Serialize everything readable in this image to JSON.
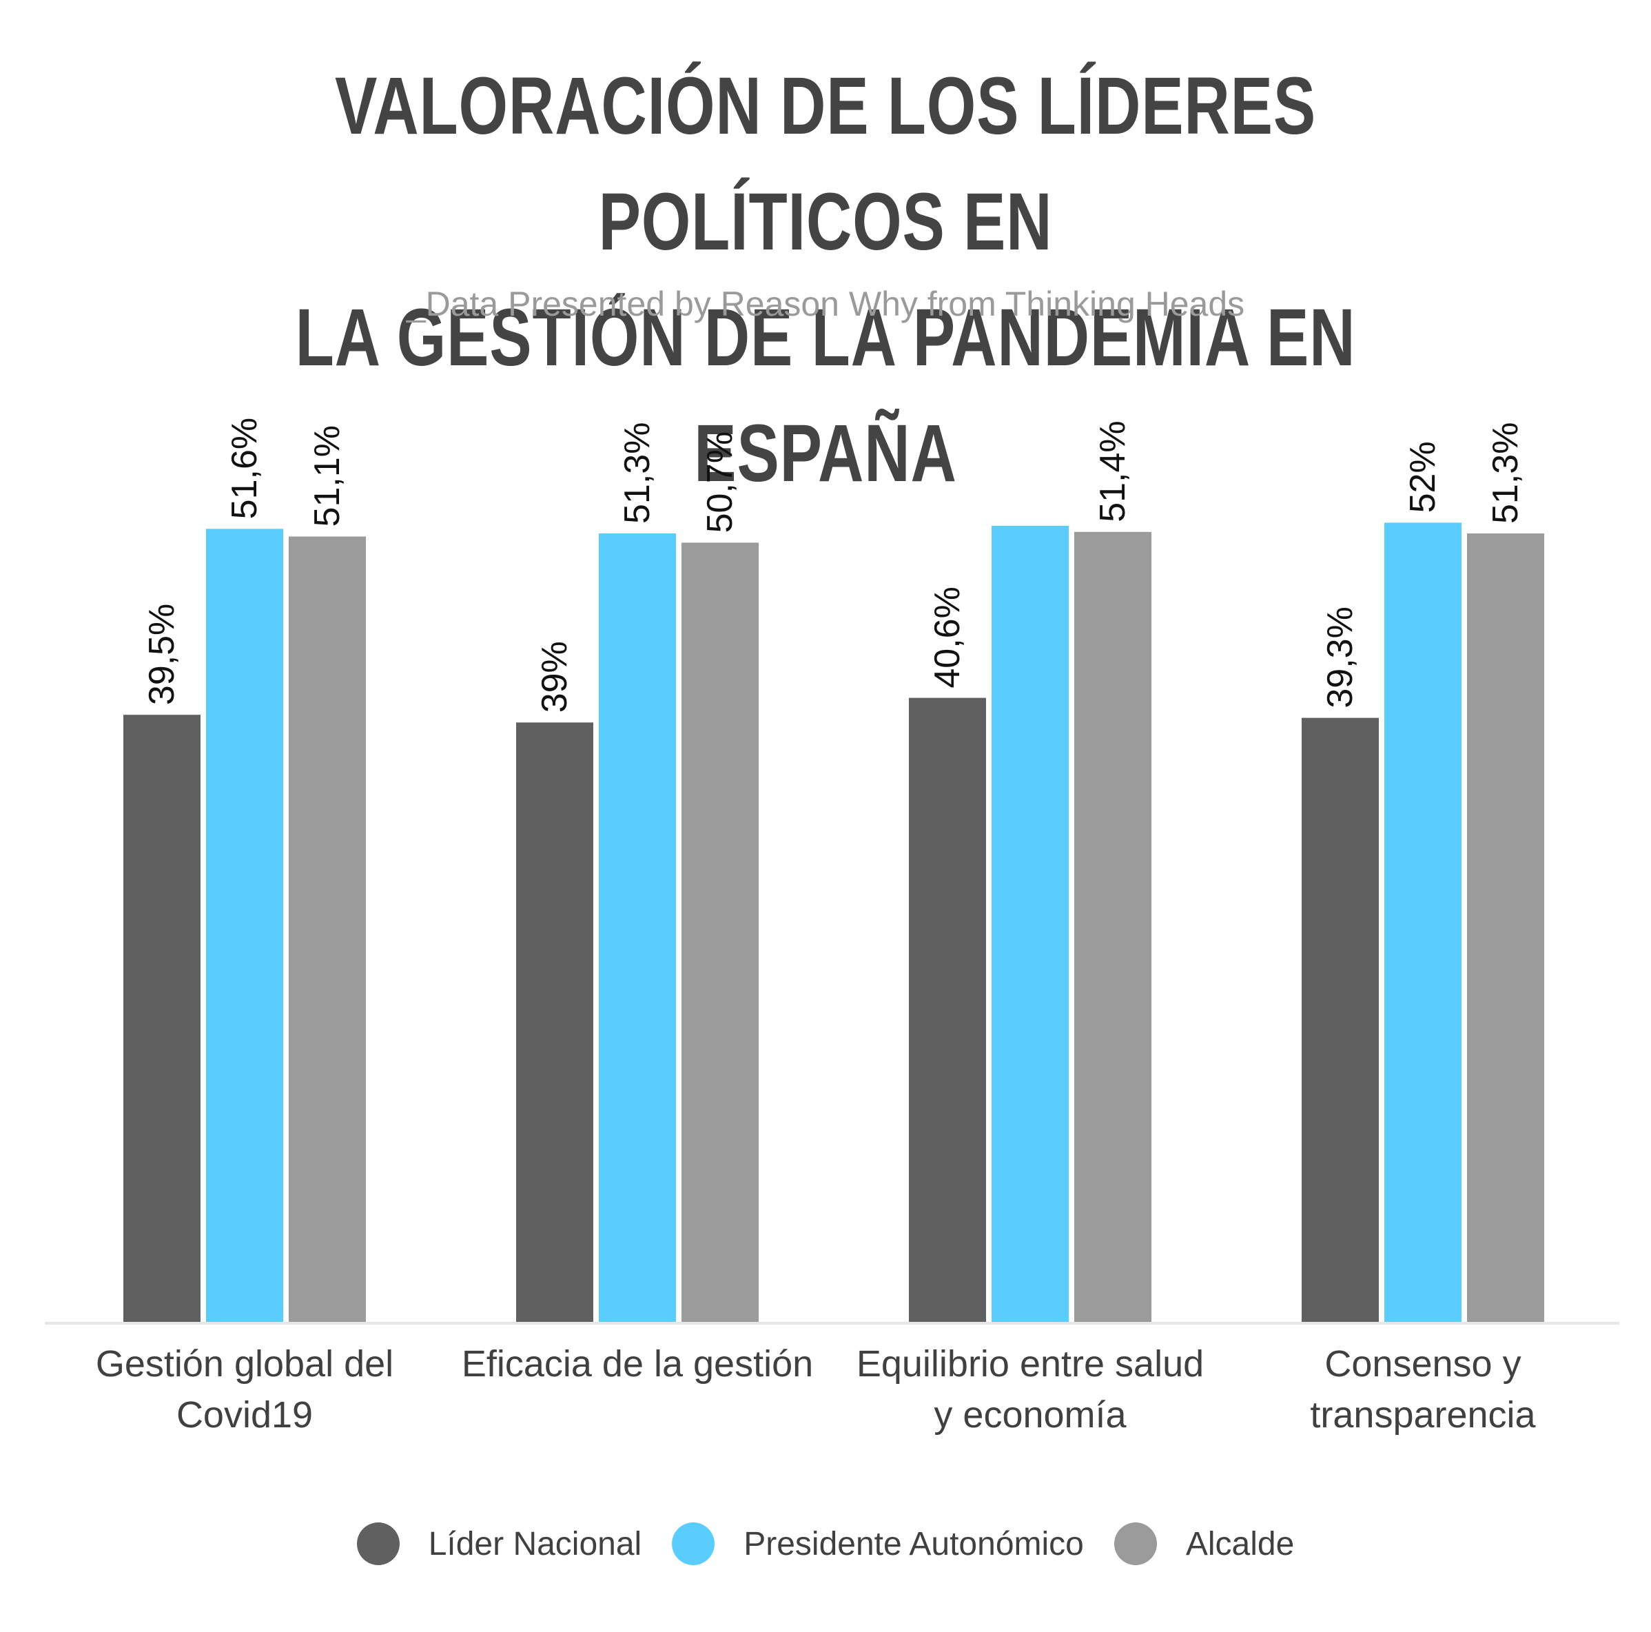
{
  "header": {
    "title_line1": "VALORACIÓN DE LOS LÍDERES POLÍTICOS EN",
    "title_line2": "LA GESTIÓN DE LA PANDEMIA EN ESPAÑA",
    "subtitle": "_Data Presented by Reason Why from Thinking Heads"
  },
  "chart_data": {
    "type": "bar",
    "title": "VALORACIÓN DE LOS LÍDERES POLÍTICOS EN LA GESTIÓN DE LA PANDEMIA EN ESPAÑA",
    "subtitle": "_Data Presented by Reason Why from Thinking Heads",
    "categories": [
      [
        "Gestión global del",
        "Covid19"
      ],
      [
        "Eficacia de la gestión"
      ],
      [
        "Equilibrio entre salud",
        "y economía"
      ],
      [
        "Consenso y",
        "transparencia"
      ]
    ],
    "series": [
      {
        "name": "Líder Nacional",
        "color": "#606060",
        "values": [
          39.5,
          39,
          40.6,
          39.3
        ],
        "labels": [
          "39,5%",
          "39%",
          "40,6%",
          "39,3%"
        ]
      },
      {
        "name": "Presidente Autonómico",
        "color": "#5bcdfd",
        "values": [
          51.6,
          51.3,
          51.8,
          52
        ],
        "labels": [
          "51,6%",
          "51,3%",
          "",
          "52%"
        ]
      },
      {
        "name": "Alcalde",
        "color": "#9b9b9b",
        "values": [
          51.1,
          50.7,
          51.4,
          51.3
        ],
        "labels": [
          "51,1%",
          "50,7%",
          "51,4%",
          "51,3%"
        ]
      }
    ],
    "ylim": [
      0,
      100
    ],
    "grid": false,
    "legend_position": "bottom-center",
    "xlabel": "",
    "ylabel": ""
  }
}
